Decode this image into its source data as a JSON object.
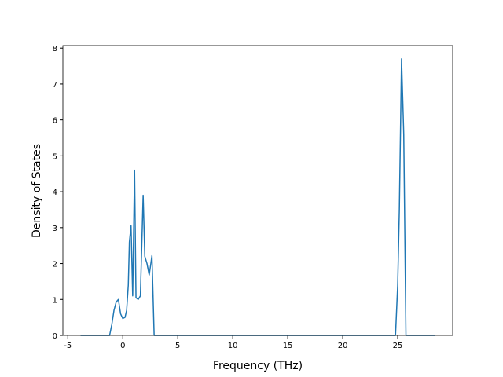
{
  "chart_data": {
    "type": "line",
    "x_label": "Frequency (THz)",
    "y_label": "Density of States",
    "x": [
      -3.84,
      -1.2,
      -1.0,
      -0.8,
      -0.6,
      -0.4,
      -0.2,
      0.0,
      0.2,
      0.35,
      0.5,
      0.6,
      0.75,
      0.9,
      1.07,
      1.2,
      1.4,
      1.6,
      1.85,
      2.0,
      2.2,
      2.4,
      2.55,
      2.65,
      2.85,
      24.8,
      25.0,
      25.15,
      25.35,
      25.55,
      25.75,
      28.4
    ],
    "series": [
      {
        "color": "#1f77b4",
        "values": [
          0,
          0,
          0.3,
          0.7,
          0.93,
          1.0,
          0.6,
          0.47,
          0.5,
          0.7,
          1.4,
          2.6,
          3.05,
          1.1,
          4.6,
          1.05,
          1.0,
          1.1,
          3.9,
          2.2,
          2.0,
          1.68,
          2.0,
          2.22,
          0,
          0,
          1.4,
          3.5,
          7.7,
          5.6,
          0,
          0
        ]
      }
    ],
    "xlim": [
      -5.45,
      30.0
    ],
    "ylim": [
      0,
      8.07
    ],
    "xticks": [
      -5,
      0,
      5,
      10,
      15,
      20,
      25
    ],
    "yticks": [
      0,
      1,
      2,
      3,
      4,
      5,
      6,
      7,
      8
    ]
  }
}
